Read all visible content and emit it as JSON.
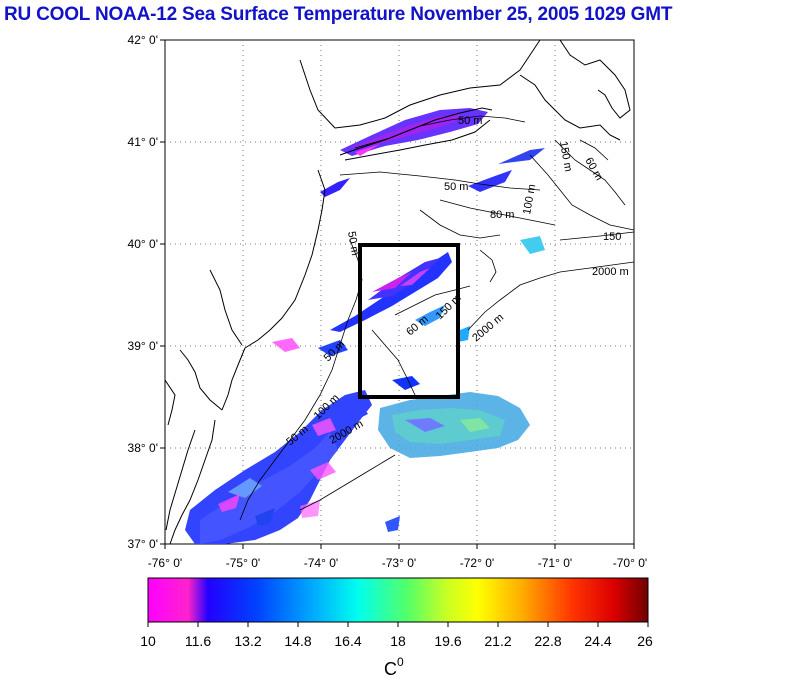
{
  "title": "RU COOL  NOAA-12 Sea Surface Temperature November 25, 2005 1029 GMT",
  "map": {
    "lat_labels": [
      "42° 0'",
      "41° 0'",
      "40° 0'",
      "39° 0'",
      "38° 0'",
      "37° 0'"
    ],
    "lon_labels": [
      "-76° 0'",
      "-75° 0'",
      "-74° 0'",
      "-73° 0'",
      "-72° 0'",
      "-71° 0'",
      "-70° 0'"
    ],
    "lat_range": [
      37,
      42
    ],
    "lon_range": [
      -76,
      -70
    ],
    "grid": "dotted",
    "isobath_labels": {
      "m50_a": "50 m",
      "m50_b": "50 m",
      "m50_c": "50 m",
      "m50_d": "50 m",
      "m50_e": "50 m",
      "m60": "60 m",
      "m80": "80 m",
      "m100_a": "100 m",
      "m100_b": "100 m",
      "m150_a": "150 m",
      "m150_b": "150",
      "m2000_a": "2000 m",
      "m2000_b": "2000 m",
      "m2000_c": "2000 m",
      "m60b": "60 m",
      "m150_c": "150 m"
    },
    "study_box": {
      "lon_min": -73.4,
      "lon_max": -72.4,
      "lat_min": 38.5,
      "lat_max": 40.0
    }
  },
  "colorbar": {
    "min": 10,
    "max": 26,
    "tick_labels": [
      "10",
      "11.6",
      "13.2",
      "14.8",
      "16.4",
      "18",
      "19.6",
      "21.2",
      "22.8",
      "24.4",
      "26"
    ],
    "unit_label": "C",
    "unit_superscript": "0",
    "colors": [
      "#ff00ff",
      "#0000ff",
      "#00ffff",
      "#00ff00",
      "#ffff00",
      "#ff0000",
      "#800000"
    ]
  }
}
